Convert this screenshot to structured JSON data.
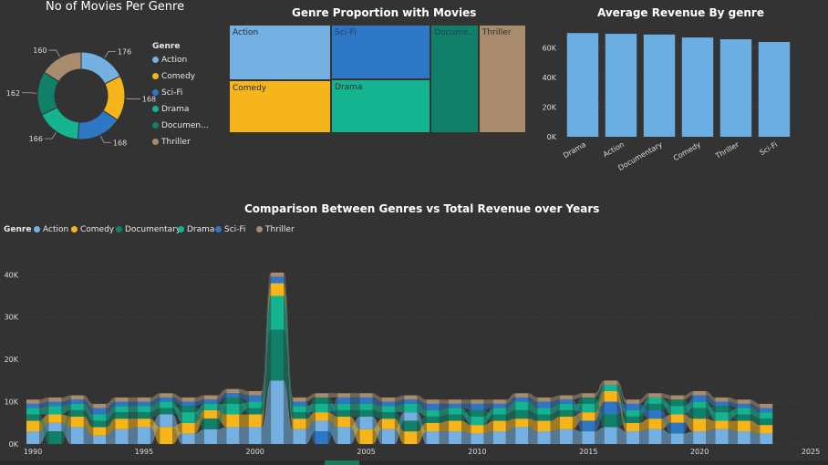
{
  "colors": {
    "background": "#333333",
    "Action": "#74b0e2",
    "Comedy": "#f5b51b",
    "Sci-Fi": "#2e77c5",
    "Drama": "#14b491",
    "Documentary": "#108069",
    "Thriller": "#a98c6d",
    "bar": "#6aaee2"
  },
  "donut": {
    "title": "No of Movies Per Genre",
    "legend_title": "Genre",
    "legend_labels": [
      "Action",
      "Comedy",
      "Sci-Fi",
      "Drama",
      "Documen...",
      "Thriller"
    ],
    "chart_data": {
      "type": "pie",
      "categories": [
        "Action",
        "Comedy",
        "Sci-Fi",
        "Drama",
        "Documentary",
        "Thriller"
      ],
      "values": [
        176,
        168,
        168,
        166,
        162,
        160
      ],
      "data_labels": [
        "176",
        "168",
        "168",
        "166",
        "162",
        "160"
      ]
    }
  },
  "treemap": {
    "title": "Genre Proportion with Movies",
    "labels": [
      "Action",
      "Sci-Fi",
      "Docume...",
      "Thriller",
      "Comedy",
      "Drama"
    ],
    "chart_data": {
      "type": "treemap",
      "categories": [
        "Action",
        "Sci-Fi",
        "Documentary",
        "Thriller",
        "Comedy",
        "Drama"
      ],
      "values": [
        176,
        168,
        162,
        160,
        168,
        166
      ]
    }
  },
  "bars": {
    "title": "Average Revenue By genre",
    "chart_data": {
      "type": "bar",
      "categories": [
        "Drama",
        "Action",
        "Documentary",
        "Comedy",
        "Thriller",
        "Sci-Fi"
      ],
      "values": [
        70000,
        69500,
        69000,
        67000,
        65800,
        64000
      ],
      "yticks": [
        "0K",
        "20K",
        "40K",
        "60K"
      ],
      "ylim": [
        0,
        72000
      ]
    }
  },
  "stream": {
    "title": "Comparison Between Genres vs Total Revenue over Years",
    "legend_title": "Genre",
    "legend_labels": [
      "Action",
      "Comedy",
      "Documentary",
      "Drama",
      "Sci-Fi",
      "Thriller"
    ],
    "chart_data": {
      "type": "area",
      "x": [
        1990,
        1991,
        1992,
        1993,
        1994,
        1995,
        1996,
        1997,
        1998,
        1999,
        2000,
        2001,
        2002,
        2003,
        2004,
        2005,
        2006,
        2007,
        2008,
        2009,
        2010,
        2011,
        2012,
        2013,
        2014,
        2015,
        2016,
        2017,
        2018,
        2019,
        2020,
        2021,
        2022,
        2023
      ],
      "series": [
        {
          "name": "Action",
          "values": [
            3000,
            2000,
            4000,
            2000,
            3500,
            4000,
            3000,
            2500,
            3500,
            4000,
            4000,
            15000,
            3500,
            2500,
            4000,
            3000,
            3500,
            2000,
            3000,
            3000,
            2500,
            3000,
            4000,
            3000,
            3500,
            3000,
            4000,
            3000,
            3500,
            2500,
            3000,
            3500,
            3000,
            2500
          ]
        },
        {
          "name": "Comedy",
          "values": [
            2500,
            2000,
            2500,
            2000,
            2500,
            2000,
            4000,
            2500,
            2000,
            3000,
            3000,
            3000,
            2500,
            2000,
            2500,
            3500,
            2500,
            3000,
            2000,
            2500,
            2000,
            2500,
            2000,
            2500,
            3000,
            2000,
            2500,
            2000,
            2500,
            2000,
            3000,
            2000,
            2500,
            2000
          ]
        },
        {
          "name": "Documentary",
          "values": [
            1500,
            3000,
            1500,
            1500,
            1500,
            1500,
            1500,
            1500,
            2500,
            1500,
            1500,
            12000,
            1500,
            1500,
            1500,
            1500,
            1500,
            2500,
            1500,
            1500,
            1500,
            1500,
            2000,
            1500,
            1500,
            1500,
            3000,
            1500,
            1500,
            1500,
            2500,
            1500,
            1500,
            1500
          ]
        },
        {
          "name": "Drama",
          "values": [
            1500,
            2000,
            1500,
            1500,
            1500,
            1500,
            1500,
            2500,
            1500,
            2500,
            1500,
            8000,
            1500,
            2000,
            1500,
            1500,
            1500,
            2000,
            1500,
            1500,
            2000,
            1500,
            2000,
            1500,
            1500,
            2000,
            1500,
            1500,
            1500,
            2000,
            1500,
            2000,
            1500,
            1500
          ]
        },
        {
          "name": "Sci-Fi",
          "values": [
            1000,
            1000,
            1000,
            1500,
            1000,
            1000,
            1000,
            1000,
            1000,
            1000,
            1500,
            1500,
            1000,
            3000,
            1500,
            1500,
            1000,
            1000,
            1500,
            1000,
            1500,
            1000,
            1000,
            1500,
            1000,
            2500,
            3000,
            1500,
            2000,
            2500,
            1500,
            1000,
            1000,
            1000
          ]
        },
        {
          "name": "Thriller",
          "values": [
            1000,
            1000,
            1000,
            1000,
            1000,
            1000,
            1000,
            1000,
            1000,
            1000,
            1000,
            1000,
            1000,
            1000,
            1000,
            1000,
            1000,
            1000,
            1000,
            1000,
            1000,
            1000,
            1000,
            1000,
            1000,
            1000,
            1000,
            1000,
            1000,
            1000,
            1000,
            1000,
            1000,
            1000
          ]
        }
      ],
      "yticks": [
        "0K",
        "10K",
        "20K",
        "30K",
        "40K"
      ],
      "xticks": [
        "1990",
        "1995",
        "2000",
        "2005",
        "2010",
        "2015",
        "2020",
        "2025"
      ],
      "ylim": [
        0,
        42000
      ],
      "xlim": [
        1990,
        2025
      ]
    }
  }
}
